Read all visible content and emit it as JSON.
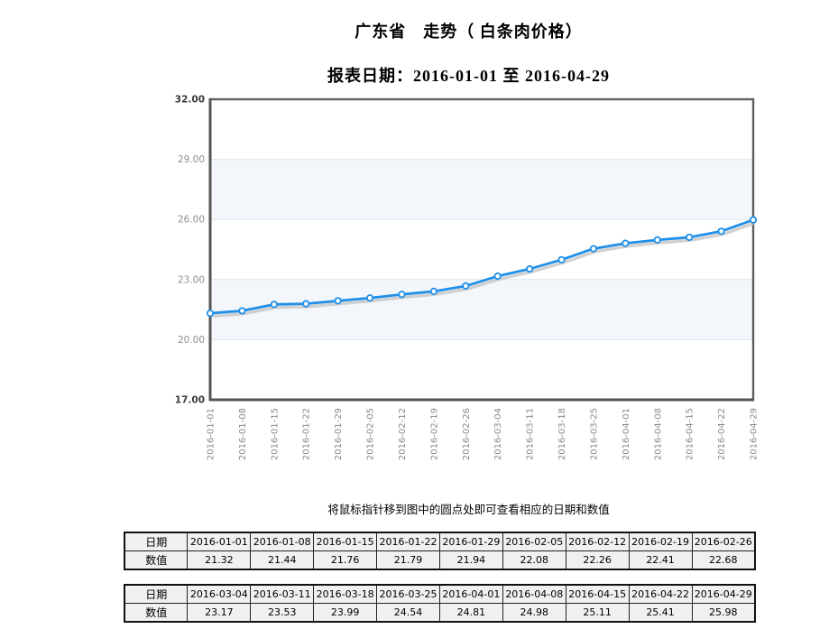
{
  "page": {
    "title": "广东省　走势（ 白条肉价格）",
    "subtitle": "报表日期：2016-01-01 至 2016-04-29",
    "hint": "将鼠标指针移到图中的圆点处即可查看相应的日期和数值"
  },
  "chart_data": {
    "type": "line",
    "title": "广东省 走势（白条肉价格）",
    "x": [
      "2016-01-01",
      "2016-01-08",
      "2016-01-15",
      "2016-01-22",
      "2016-01-29",
      "2016-02-05",
      "2016-02-12",
      "2016-02-19",
      "2016-02-26",
      "2016-03-04",
      "2016-03-11",
      "2016-03-18",
      "2016-03-25",
      "2016-04-01",
      "2016-04-08",
      "2016-04-15",
      "2016-04-22",
      "2016-04-29"
    ],
    "series": [
      {
        "name": "白条肉价格",
        "values": [
          21.32,
          21.44,
          21.76,
          21.79,
          21.94,
          22.08,
          22.26,
          22.41,
          22.68,
          23.17,
          23.53,
          23.99,
          24.54,
          24.81,
          24.98,
          25.11,
          25.41,
          25.98
        ]
      }
    ],
    "ylim": [
      17,
      32
    ],
    "yticks": [
      17,
      20,
      23,
      26,
      29,
      32
    ],
    "ytick_labels": [
      "17.00",
      "20.00",
      "23.00",
      "26.00",
      "29.00",
      "32.00"
    ],
    "grid": "horizontal-bands",
    "legend": "none",
    "marker": "open-circle",
    "colors": {
      "line": "#1e8fe9",
      "marker_fill": "#ffffff",
      "band": "#f3f7fb",
      "gridline": "#dde5ec",
      "plot_border": "#606060",
      "shadow": "#c2c2c2"
    }
  },
  "tables": [
    {
      "date_label": "日期",
      "value_label": "数值",
      "dates": [
        "2016-01-01",
        "2016-01-08",
        "2016-01-15",
        "2016-01-22",
        "2016-01-29",
        "2016-02-05",
        "2016-02-12",
        "2016-02-19",
        "2016-02-26"
      ],
      "values": [
        "21.32",
        "21.44",
        "21.76",
        "21.79",
        "21.94",
        "22.08",
        "22.26",
        "22.41",
        "22.68"
      ]
    },
    {
      "date_label": "日期",
      "value_label": "数值",
      "dates": [
        "2016-03-04",
        "2016-03-11",
        "2016-03-18",
        "2016-03-25",
        "2016-04-01",
        "2016-04-08",
        "2016-04-15",
        "2016-04-22",
        "2016-04-29"
      ],
      "values": [
        "23.17",
        "23.53",
        "23.99",
        "24.54",
        "24.81",
        "24.98",
        "25.11",
        "25.41",
        "25.98"
      ]
    }
  ]
}
